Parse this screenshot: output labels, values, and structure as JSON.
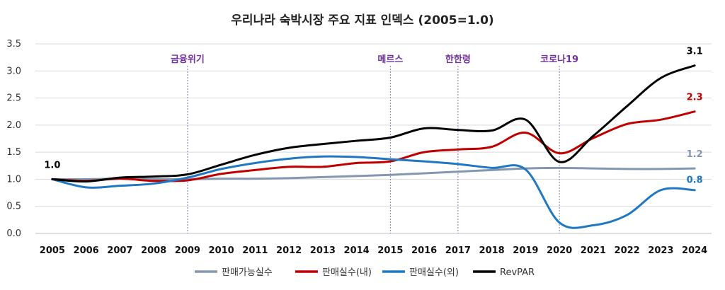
{
  "chart_data": {
    "type": "line",
    "title": "우리나라 숙박시장 주요 지표 인덱스 (2005=1.0)",
    "xlabel": "",
    "ylabel": "",
    "x": [
      "2005",
      "2006",
      "2007",
      "2008",
      "2009",
      "2010",
      "2011",
      "2012",
      "2013",
      "2014",
      "2015",
      "2016",
      "2017",
      "2018",
      "2019",
      "2020",
      "2021",
      "2022",
      "2023",
      "2024"
    ],
    "ylim": [
      0.0,
      3.5
    ],
    "yticks": [
      "0.0",
      "0.5",
      "1.0",
      "1.5",
      "2.0",
      "2.5",
      "3.0",
      "3.5"
    ],
    "grid": true,
    "legend_position": "bottom",
    "series": [
      {
        "name": "판매가능실수",
        "color": "#8497b0",
        "values": [
          1.0,
          1.0,
          1.01,
          1.0,
          1.0,
          1.01,
          1.01,
          1.02,
          1.04,
          1.06,
          1.08,
          1.11,
          1.14,
          1.17,
          1.2,
          1.21,
          1.2,
          1.19,
          1.19,
          1.2
        ]
      },
      {
        "name": "판매실수(내)",
        "color": "#c00000",
        "values": [
          1.0,
          0.97,
          1.01,
          0.97,
          0.98,
          1.1,
          1.17,
          1.23,
          1.23,
          1.3,
          1.33,
          1.5,
          1.55,
          1.6,
          1.86,
          1.48,
          1.76,
          2.02,
          2.1,
          2.25
        ]
      },
      {
        "name": "판매실수(외)",
        "color": "#1f78c1",
        "values": [
          1.0,
          0.85,
          0.88,
          0.92,
          1.03,
          1.19,
          1.3,
          1.38,
          1.42,
          1.41,
          1.37,
          1.33,
          1.28,
          1.21,
          1.18,
          0.2,
          0.15,
          0.34,
          0.8,
          0.8
        ]
      },
      {
        "name": "RevPAR",
        "color": "#000000",
        "values": [
          1.0,
          0.96,
          1.03,
          1.05,
          1.09,
          1.27,
          1.45,
          1.58,
          1.65,
          1.71,
          1.77,
          1.94,
          1.91,
          1.9,
          2.1,
          1.32,
          1.8,
          2.35,
          2.87,
          3.1
        ]
      }
    ],
    "annotations": [
      {
        "label": "1.0",
        "series": "RevPAR",
        "x": "2005"
      },
      {
        "label": "3.1",
        "series": "RevPAR",
        "x": "2024"
      },
      {
        "label": "2.3",
        "series": "판매실수(내)",
        "x": "2024"
      },
      {
        "label": "1.2",
        "series": "판매가능실수",
        "x": "2024"
      },
      {
        "label": "0.8",
        "series": "판매실수(외)",
        "x": "2024"
      }
    ],
    "events": [
      {
        "label": "금융위기",
        "x": "2009"
      },
      {
        "label": "메르스",
        "x": "2015"
      },
      {
        "label": "한한령",
        "x": "2017"
      },
      {
        "label": "코로나19",
        "x": "2020"
      }
    ]
  }
}
